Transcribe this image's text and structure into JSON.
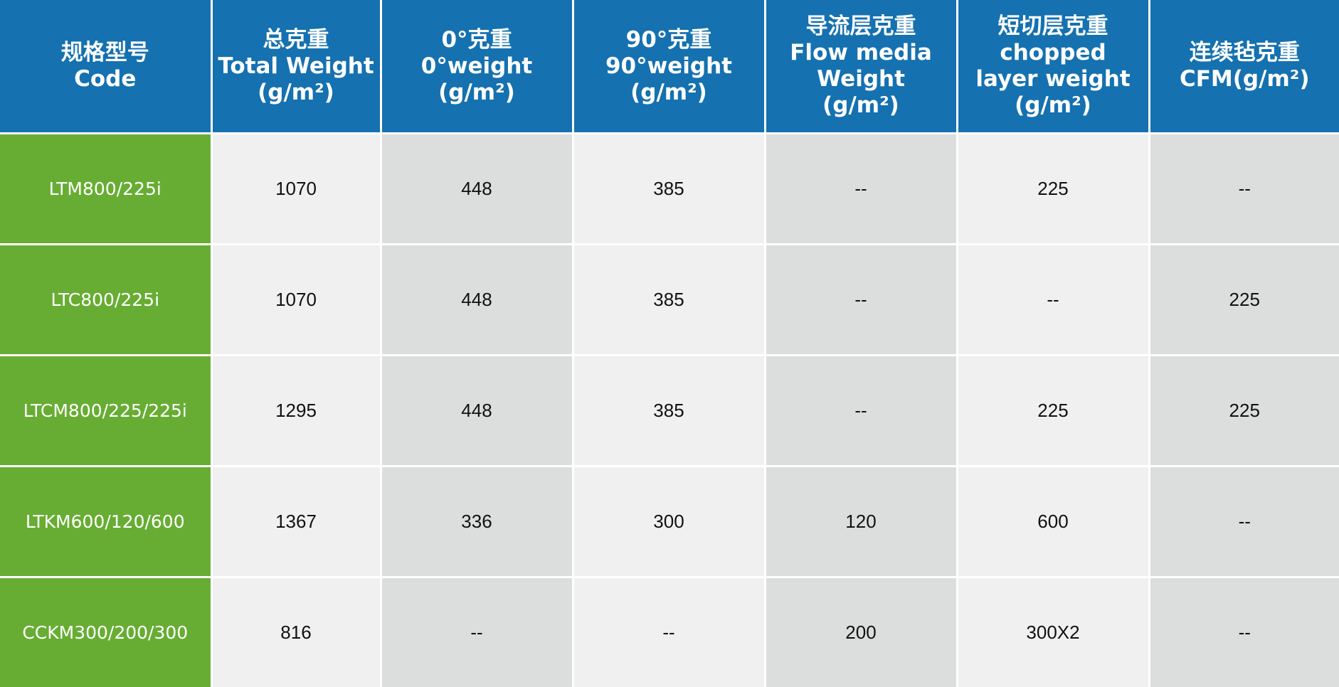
{
  "headers": [
    [
      "规格型号",
      "Code"
    ],
    [
      "总克重",
      "Total Weight",
      "(g/m²)"
    ],
    [
      "0°克重",
      "0°weight",
      "(g/m²)"
    ],
    [
      "90°克重",
      "90°weight",
      "(g/m²)"
    ],
    [
      "导流层克重",
      "Flow media",
      "Weight",
      "(g/m²)"
    ],
    [
      "短切层克重",
      "chopped",
      "layer weight",
      "(g/m²)"
    ],
    [
      "连续毡克重",
      "CFM(g/m²)"
    ]
  ],
  "rows": [
    [
      "LTM800/225i",
      "1070",
      "448",
      "385",
      "--",
      "225",
      "--"
    ],
    [
      "LTC800/225i",
      "1070",
      "448",
      "385",
      "--",
      "--",
      "225"
    ],
    [
      "LTCM800/225/225i",
      "1295",
      "448",
      "385",
      "--",
      "225",
      "225"
    ],
    [
      "LTKM600/120/600",
      "1367",
      "336",
      "300",
      "120",
      "600",
      "--"
    ],
    [
      "CCKM300/200/300",
      "816",
      "--",
      "--",
      "200",
      "300X2",
      "--"
    ]
  ],
  "colors": {
    "header": "#1571b0",
    "code": "#67ad33",
    "light": "#f0f0f0",
    "dark": "#dcdedd"
  }
}
